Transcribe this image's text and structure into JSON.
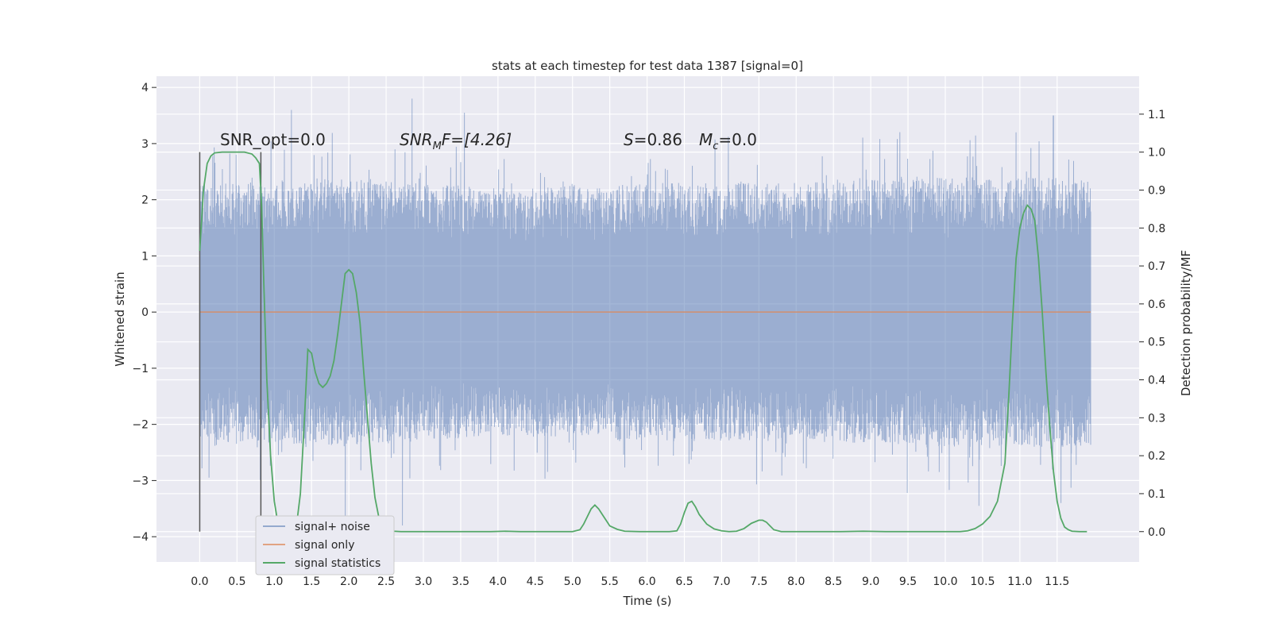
{
  "chart_data": {
    "type": "line",
    "title": "stats at each timestep for test data 1387 [signal=0]",
    "xlabel": "Time (s)",
    "ylabel": "Whitened strain",
    "y2label": "Detection probability/MF",
    "xlim": [
      -0.58,
      12.6
    ],
    "ylim": [
      -4.45,
      4.2
    ],
    "y2lim": [
      -0.08,
      1.2
    ],
    "xticks": [
      "0.0",
      "0.5",
      "1.0",
      "1.5",
      "2.0",
      "2.5",
      "3.0",
      "3.5",
      "4.0",
      "4.5",
      "5.0",
      "5.5",
      "6.0",
      "6.5",
      "7.0",
      "7.5",
      "8.0",
      "8.5",
      "9.0",
      "9.5",
      "10.0",
      "10.5",
      "11.0",
      "11.5"
    ],
    "yticks": [
      -4,
      -3,
      -2,
      -1,
      0,
      1,
      2,
      3,
      4
    ],
    "y2ticks": [
      "0.0",
      "0.1",
      "0.2",
      "0.3",
      "0.4",
      "0.5",
      "0.6",
      "0.7",
      "0.8",
      "0.9",
      "1.0",
      "1.1"
    ],
    "grid": true,
    "legend_position": "lower-left",
    "colors": {
      "background": "#eaeaf2",
      "grid": "#ffffff",
      "noise": "#4c72b0",
      "signal": "#dd8452",
      "stats": "#55a868",
      "marker": "#555555"
    },
    "annotations": {
      "snr_opt": "SNR_opt=0.0",
      "snr_mf_main": "SNR",
      "snr_mf_sub": "M",
      "snr_mf_rest": "F=[4.26]",
      "s_label": "S",
      "s_value": "=0.86",
      "mc_main": "M",
      "mc_sub": "c",
      "mc_value": "=0.0"
    },
    "markers_x": [
      0.0,
      0.82
    ],
    "noise_series": {
      "name": "signal+ noise",
      "x_range": [
        0.0,
        11.95
      ],
      "envelope": [
        [
          0.0,
          2.3
        ],
        [
          2.0,
          2.4
        ],
        [
          4.0,
          2.2
        ],
        [
          6.0,
          2.3
        ],
        [
          8.0,
          2.3
        ],
        [
          10.0,
          2.4
        ],
        [
          11.95,
          2.4
        ]
      ],
      "extremes": [
        {
          "x": 1.23,
          "y": 3.6
        },
        {
          "x": 2.85,
          "y": 3.8
        },
        {
          "x": 3.55,
          "y": 3.55
        },
        {
          "x": 1.95,
          "y": -3.7
        },
        {
          "x": 2.72,
          "y": -3.8
        },
        {
          "x": 10.45,
          "y": -3.45
        },
        {
          "x": 11.55,
          "y": -3.4
        },
        {
          "x": 10.95,
          "y": 3.2
        },
        {
          "x": 11.45,
          "y": 3.5
        }
      ]
    },
    "signal_series": {
      "name": "signal only",
      "x": [
        0.0,
        11.95
      ],
      "y": [
        0.0,
        0.0
      ]
    },
    "stats_series": {
      "name": "signal statistics",
      "x": [
        0.0,
        0.05,
        0.1,
        0.15,
        0.2,
        0.3,
        0.4,
        0.5,
        0.6,
        0.7,
        0.75,
        0.8,
        0.83,
        0.86,
        0.9,
        0.95,
        1.0,
        1.05,
        1.1,
        1.2,
        1.25,
        1.3,
        1.35,
        1.4,
        1.45,
        1.5,
        1.55,
        1.6,
        1.65,
        1.7,
        1.75,
        1.8,
        1.85,
        1.9,
        1.95,
        2.0,
        2.05,
        2.1,
        2.15,
        2.2,
        2.25,
        2.3,
        2.35,
        2.4,
        2.45,
        2.5,
        2.6,
        2.7,
        2.8,
        3.0,
        3.3,
        3.6,
        3.9,
        4.1,
        4.3,
        4.6,
        4.9,
        5.0,
        5.1,
        5.15,
        5.2,
        5.25,
        5.3,
        5.35,
        5.4,
        5.45,
        5.5,
        5.6,
        5.7,
        5.9,
        6.1,
        6.3,
        6.4,
        6.45,
        6.5,
        6.55,
        6.6,
        6.65,
        6.7,
        6.8,
        6.9,
        7.0,
        7.1,
        7.2,
        7.3,
        7.4,
        7.5,
        7.55,
        7.6,
        7.65,
        7.7,
        7.8,
        7.9,
        8.0,
        8.3,
        8.6,
        8.9,
        9.2,
        9.5,
        9.8,
        10.0,
        10.2,
        10.3,
        10.4,
        10.5,
        10.6,
        10.7,
        10.8,
        10.85,
        10.9,
        10.95,
        11.0,
        11.05,
        11.1,
        11.15,
        11.2,
        11.25,
        11.3,
        11.35,
        11.4,
        11.45,
        11.5,
        11.55,
        11.6,
        11.65,
        11.7,
        11.8,
        11.9
      ],
      "y": [
        0.74,
        0.9,
        0.97,
        0.99,
        0.998,
        1.0,
        1.0,
        1.0,
        1.0,
        0.995,
        0.985,
        0.97,
        0.86,
        0.65,
        0.4,
        0.2,
        0.08,
        0.02,
        0.003,
        0.0,
        0.005,
        0.02,
        0.1,
        0.28,
        0.48,
        0.47,
        0.42,
        0.39,
        0.38,
        0.39,
        0.41,
        0.45,
        0.52,
        0.6,
        0.68,
        0.69,
        0.68,
        0.63,
        0.55,
        0.42,
        0.3,
        0.18,
        0.09,
        0.04,
        0.015,
        0.005,
        0.001,
        0.0,
        0.0,
        0.0,
        0.0,
        0.0,
        0.0,
        0.001,
        0.0,
        0.0,
        0.0,
        0.0,
        0.005,
        0.02,
        0.04,
        0.06,
        0.07,
        0.06,
        0.045,
        0.03,
        0.015,
        0.006,
        0.001,
        0.0,
        0.0,
        0.0,
        0.002,
        0.02,
        0.05,
        0.075,
        0.08,
        0.065,
        0.045,
        0.02,
        0.007,
        0.002,
        0.0,
        0.001,
        0.008,
        0.022,
        0.03,
        0.03,
        0.025,
        0.015,
        0.005,
        0.0,
        0.0,
        0.0,
        0.0,
        0.0,
        0.001,
        0.0,
        0.0,
        0.0,
        0.0,
        0.0,
        0.002,
        0.008,
        0.02,
        0.04,
        0.08,
        0.18,
        0.35,
        0.55,
        0.72,
        0.8,
        0.84,
        0.86,
        0.85,
        0.82,
        0.72,
        0.58,
        0.42,
        0.28,
        0.16,
        0.08,
        0.035,
        0.012,
        0.005,
        0.001,
        0.0,
        0.0
      ]
    },
    "legend": [
      "signal+ noise",
      "signal only",
      "signal statistics"
    ]
  }
}
